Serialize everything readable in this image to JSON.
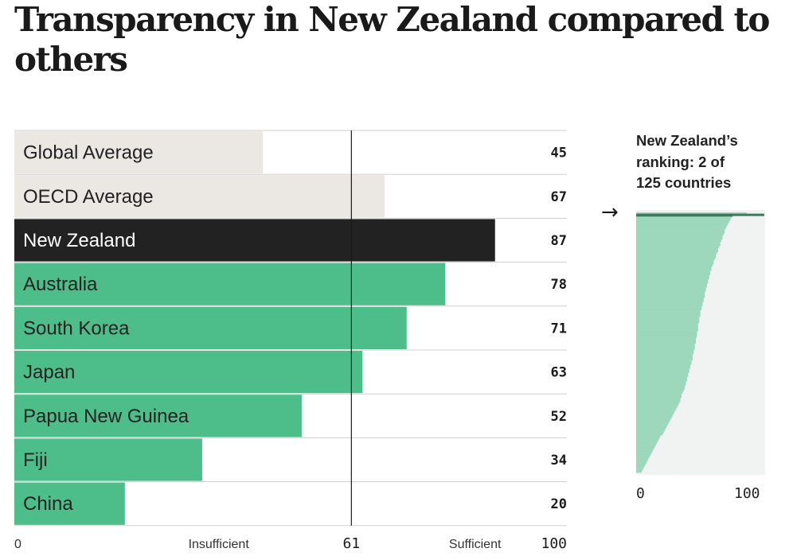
{
  "title": "Transparency in New Zealand compared to others",
  "colors": {
    "average": "#ebe8e4",
    "highlight": "#222222",
    "country": "#4dbd8a",
    "side_fill": "#9dd7bc",
    "side_bg": "#f1f2f2",
    "side_marker": "#3b7a5c"
  },
  "chart_data": [
    {
      "type": "bar",
      "orientation": "horizontal",
      "categories": [
        "Global Average",
        "OECD Average",
        "New Zealand",
        "Australia",
        "South Korea",
        "Japan",
        "Papua New Guinea",
        "Fiji",
        "China"
      ],
      "values": [
        45,
        67,
        87,
        78,
        71,
        63,
        52,
        34,
        20
      ],
      "value_labels": [
        "45",
        "67",
        "87",
        "78",
        "71",
        "63",
        "52",
        "34",
        "20"
      ],
      "kinds": [
        "average",
        "average",
        "highlight",
        "country",
        "country",
        "country",
        "country",
        "country",
        "country"
      ],
      "xlim": [
        0,
        100
      ],
      "threshold": 61,
      "axis_labels": {
        "min": "0",
        "below_threshold": "Insufficient",
        "threshold": "61",
        "above_threshold": "Sufficient",
        "max": "100"
      }
    },
    {
      "type": "bar",
      "orientation": "horizontal",
      "title": "New Zealand's ranking: 2 of 125 countries",
      "title_lines": [
        "New Zealand’s",
        "ranking: 2 of",
        "125 countries"
      ],
      "highlight_rank": 2,
      "count": 125,
      "xlim": [
        0,
        100
      ],
      "xticks": [
        "0",
        "100"
      ],
      "values": [
        100,
        87,
        86,
        85,
        84,
        83,
        82,
        81,
        80,
        80,
        79,
        78,
        78,
        77,
        76,
        76,
        75,
        74,
        74,
        73,
        72,
        72,
        71,
        70,
        70,
        69,
        68,
        68,
        67,
        67,
        66,
        66,
        65,
        65,
        64,
        64,
        63,
        63,
        62,
        62,
        62,
        61,
        61,
        60,
        60,
        59,
        59,
        58,
        58,
        58,
        57,
        57,
        57,
        56,
        56,
        56,
        56,
        55,
        55,
        55,
        54,
        54,
        54,
        53,
        53,
        53,
        52,
        52,
        51,
        51,
        51,
        50,
        50,
        49,
        49,
        48,
        48,
        47,
        47,
        46,
        46,
        45,
        45,
        44,
        44,
        43,
        42,
        41,
        41,
        40,
        40,
        39,
        38,
        37,
        36,
        35,
        34,
        33,
        32,
        31,
        30,
        29,
        28,
        27,
        26,
        25,
        24,
        22,
        21,
        20,
        19,
        18,
        17,
        16,
        15,
        14,
        13,
        12,
        11,
        10,
        9,
        8,
        7,
        6,
        5
      ]
    }
  ]
}
